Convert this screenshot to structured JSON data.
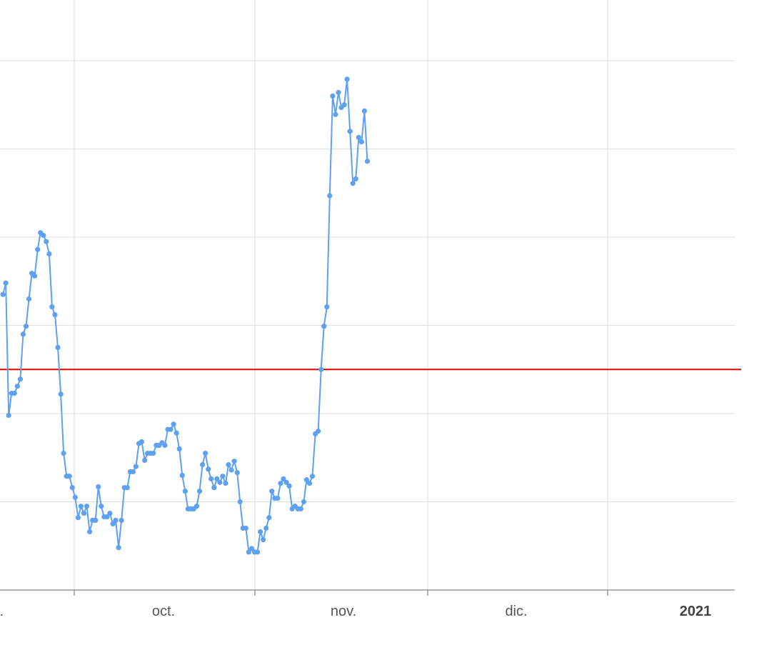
{
  "chart_data": {
    "type": "line",
    "title": "",
    "xlabel": "",
    "ylabel": "",
    "x_tick_labels": [
      "t.",
      "oct.",
      "nov.",
      "dic.",
      "2021"
    ],
    "bold_tick_labels": [
      "2021"
    ],
    "y_tick_labels": [],
    "grid": true,
    "legend": "none",
    "colors": {
      "series": "#5ea0f2",
      "reference": "#d40000",
      "grid": "#dddddd",
      "axis": "#999999"
    },
    "x_range": [
      -1,
      253
    ],
    "y_range": [
      0,
      6
    ],
    "reference_line": 2.5,
    "series": [
      {
        "values": [
          3.35,
          3.48,
          1.98,
          2.23,
          2.23,
          2.31,
          2.39,
          2.9,
          2.99,
          3.3,
          3.59,
          3.56,
          3.86,
          4.05,
          4.02,
          3.95,
          3.81,
          3.21,
          3.12,
          2.75,
          2.22,
          1.55,
          1.29,
          1.29,
          1.16,
          1.05,
          0.82,
          0.95,
          0.87,
          0.95,
          0.66,
          0.79,
          0.79,
          1.17,
          0.95,
          0.83,
          0.83,
          0.87,
          0.75,
          0.79,
          0.48,
          0.79,
          1.16,
          1.16,
          1.34,
          1.34,
          1.4,
          1.66,
          1.68,
          1.47,
          1.55,
          1.55,
          1.55,
          1.64,
          1.64,
          1.67,
          1.64,
          1.82,
          1.82,
          1.88,
          1.78,
          1.6,
          1.3,
          1.12,
          0.92,
          0.92,
          0.92,
          0.95,
          1.12,
          1.42,
          1.55,
          1.37,
          1.26,
          1.16,
          1.26,
          1.22,
          1.29,
          1.21,
          1.42,
          1.36,
          1.46,
          1.33,
          1.0,
          0.7,
          0.7,
          0.43,
          0.47,
          0.43,
          0.43,
          0.66,
          0.57,
          0.7,
          0.82,
          1.12,
          1.04,
          1.04,
          1.21,
          1.26,
          1.22,
          1.18,
          0.92,
          0.95,
          0.92,
          0.92,
          1.0,
          1.25,
          1.21,
          1.29,
          1.77,
          1.8,
          2.5,
          2.99,
          3.21,
          4.47,
          5.6,
          5.39,
          5.64,
          5.47,
          5.5,
          5.79,
          5.2,
          4.61,
          4.66,
          5.13,
          5.08,
          5.43,
          4.86
        ]
      }
    ]
  }
}
